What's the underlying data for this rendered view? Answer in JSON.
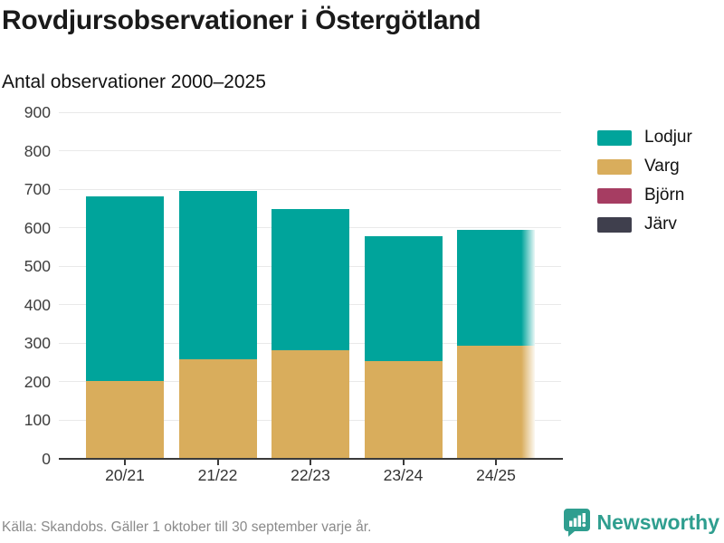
{
  "title": "Rovdjursobservationer i Östergötland",
  "subtitle": "Antal observationer 2000–2025",
  "footer": {
    "source": "Källa: Skandobs. Gäller 1 oktober till 30 september varje år."
  },
  "branding": {
    "name": "Newsworthy",
    "color": "#2f9e8f",
    "icon": "bar-chart-speech-bubble-icon"
  },
  "colors": {
    "lodjur": "#00a49b",
    "varg": "#d9ad5c",
    "bjorn": "#a63d62",
    "jarv": "#3f3f4d",
    "gridline": "#e9e9e9",
    "axis": "#3a3a3a",
    "footer_text": "#8a8a8a"
  },
  "chart_data": {
    "type": "bar",
    "stacked": true,
    "title": "Rovdjursobservationer i Östergötland",
    "subtitle": "Antal observationer 2000–2025",
    "xlabel": "",
    "ylabel": "",
    "categories": [
      "20/21",
      "21/22",
      "22/23",
      "23/24",
      "24/25"
    ],
    "series": [
      {
        "name": "Lodjur",
        "color": "#00a49b",
        "values": [
          480,
          438,
          367,
          326,
          302
        ]
      },
      {
        "name": "Varg",
        "color": "#d9ad5c",
        "values": [
          201,
          258,
          282,
          253,
          293
        ]
      },
      {
        "name": "Björn",
        "color": "#a63d62",
        "values": [
          0,
          0,
          0,
          0,
          0
        ]
      },
      {
        "name": "Järv",
        "color": "#3f3f4d",
        "values": [
          0,
          0,
          0,
          0,
          0
        ]
      }
    ],
    "totals": [
      681,
      696,
      649,
      579,
      595
    ],
    "ylim": [
      0,
      900
    ],
    "yticks": [
      0,
      100,
      200,
      300,
      400,
      500,
      600,
      700,
      800,
      900
    ],
    "grid": true,
    "legend_position": "right",
    "last_bar_faded": true
  }
}
